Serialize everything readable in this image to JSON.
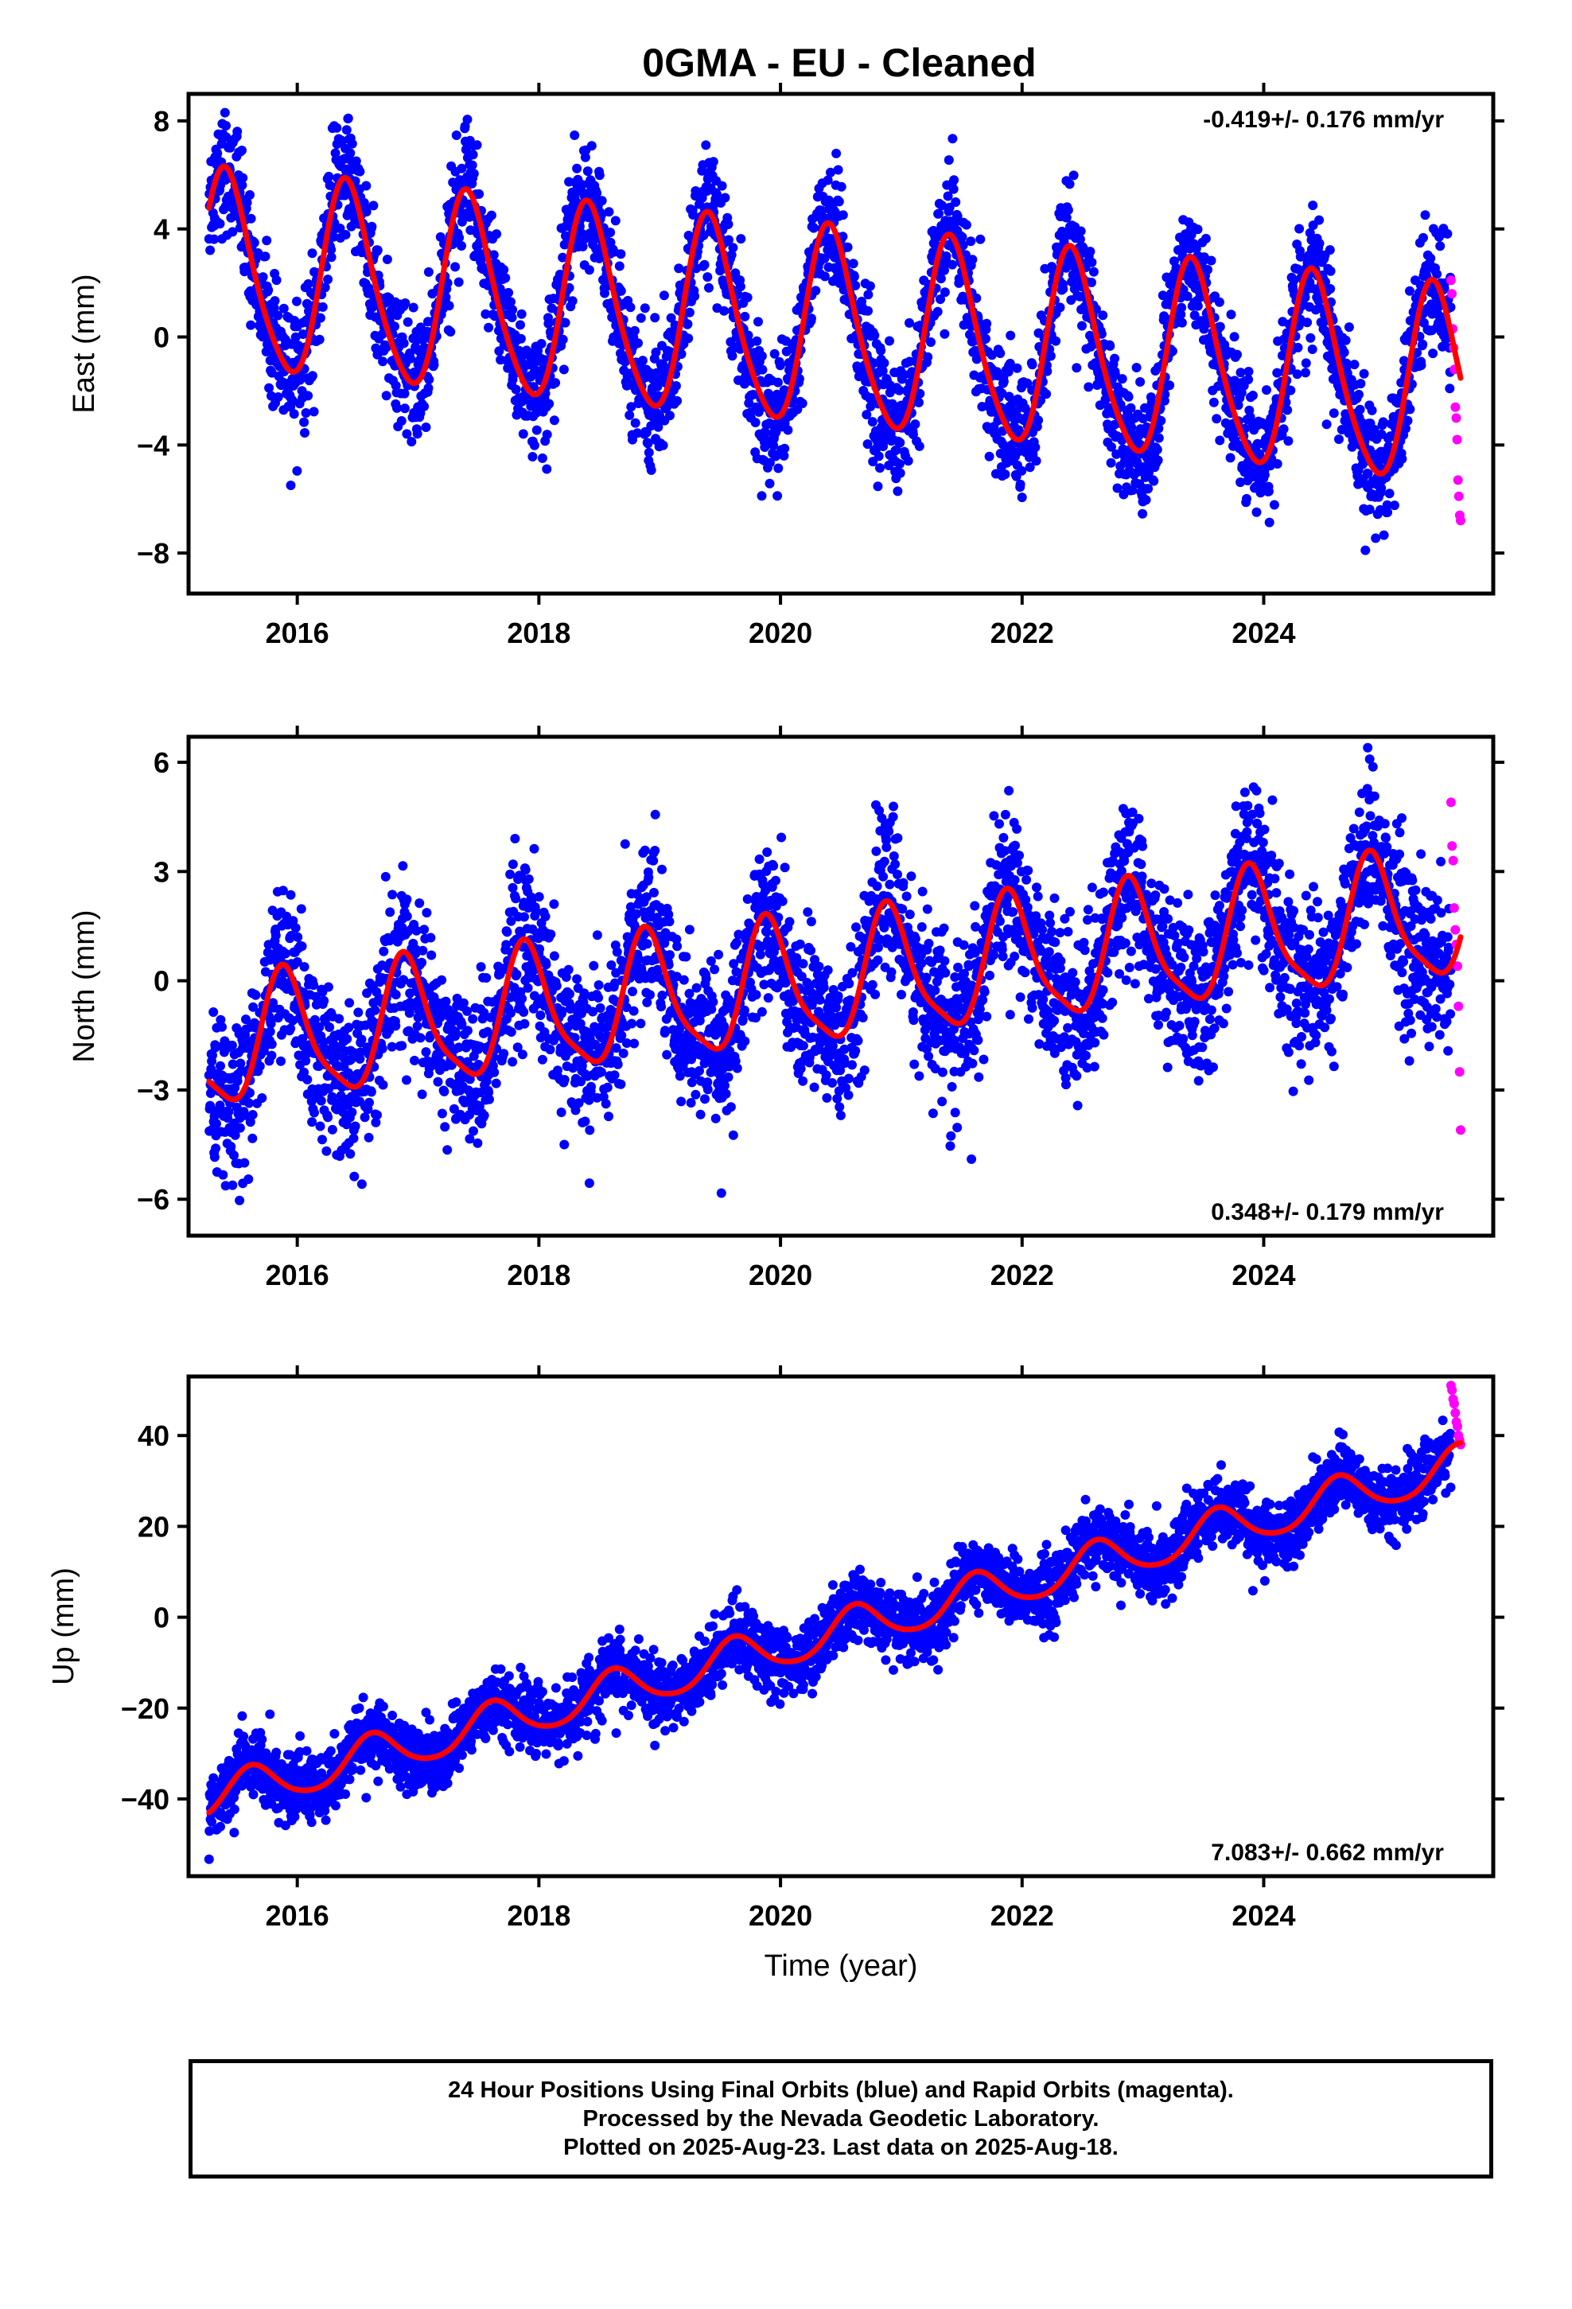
{
  "title": "0GMA  - EU - Cleaned",
  "colors": {
    "final_orbits": "#0000ff",
    "rapid_orbits": "#ff00ff",
    "model_fit": "#ff0000",
    "frame": "#000000"
  },
  "x_axis": {
    "label": "Time (year)",
    "range": [
      2015.1,
      2025.9
    ],
    "ticks": [
      2016,
      2018,
      2020,
      2022,
      2024
    ],
    "tick_labels": [
      "2016",
      "2018",
      "2020",
      "2022",
      "2024"
    ]
  },
  "panels": [
    {
      "id": "east",
      "ylabel": "East (mm)",
      "rate_text": "-0.419+/- 0.176 mm/yr",
      "rate_position": "top-right",
      "ylim": [
        -9.5,
        9.0
      ],
      "yticks": [
        -8,
        -4,
        0,
        4,
        8
      ],
      "ytick_labels": [
        "−8",
        "−4",
        "0",
        "4",
        "8"
      ]
    },
    {
      "id": "north",
      "ylabel": "North (mm)",
      "rate_text": "0.348+/- 0.179 mm/yr",
      "rate_position": "bottom-right",
      "ylim": [
        -7.0,
        6.7
      ],
      "yticks": [
        -6,
        -3,
        0,
        3,
        6
      ],
      "ytick_labels": [
        "−6",
        "−3",
        "0",
        "3",
        "6"
      ]
    },
    {
      "id": "up",
      "ylabel": "Up (mm)",
      "rate_text": "7.083+/- 0.662 mm/yr",
      "rate_position": "bottom-right",
      "ylim": [
        -57,
        53
      ],
      "yticks": [
        -40,
        -20,
        0,
        20,
        40
      ],
      "ytick_labels": [
        "−40",
        "−20",
        "0",
        "20",
        "40"
      ]
    }
  ],
  "chart_data": [
    {
      "type": "scatter",
      "panel": "east",
      "ylabel": "East (mm)",
      "xlim": [
        2015.1,
        2025.9
      ],
      "ylim": [
        -9.5,
        9.0
      ],
      "annotation": "-0.419+/- 0.176 mm/yr",
      "model": {
        "offset": 0.2,
        "rate": -0.419,
        "t0": 2020.5,
        "annual_amplitude": 3.6,
        "annual_peak": 0.42,
        "semiannual_amplitude": 0.5,
        "semiannual_peak": 0.35
      },
      "final_points": {
        "start": 2015.27,
        "end": 2025.55,
        "scatter_sd": 1.1
      },
      "rapid_points": {
        "start": 2025.55,
        "end": 2025.63,
        "values": [
          2.1,
          1.6,
          0.3,
          -0.4,
          -1.2,
          -2.6,
          -3.0,
          -3.8,
          -5.3,
          -5.9,
          -6.6,
          -6.8
        ]
      },
      "plotted_range": [
        -9,
        8.7
      ]
    },
    {
      "type": "scatter",
      "panel": "north",
      "ylabel": "North (mm)",
      "xlim": [
        2015.1,
        2025.9
      ],
      "ylim": [
        -7.0,
        6.7
      ],
      "annotation": "0.348+/- 0.179 mm/yr",
      "model": {
        "offset": 0.0,
        "rate": 0.348,
        "t0": 2020.5,
        "annual_amplitude": 1.7,
        "annual_peak": 0.9,
        "semiannual_amplitude": 0.4,
        "semiannual_peak": 0.85
      },
      "final_points": {
        "start": 2015.27,
        "end": 2025.55,
        "scatter_sd": 1.05
      },
      "rapid_points": {
        "start": 2025.55,
        "end": 2025.63,
        "values": [
          4.9,
          3.7,
          3.3,
          2.0,
          1.4,
          1.0,
          0.4,
          -0.7,
          -2.5,
          -4.1
        ]
      },
      "plotted_range": [
        -6.8,
        6.4
      ]
    },
    {
      "type": "scatter",
      "panel": "up",
      "ylabel": "Up (mm)",
      "xlim": [
        2015.1,
        2025.9
      ],
      "ylim": [
        -57,
        53
      ],
      "annotation": "7.083+/- 0.662 mm/yr",
      "model": {
        "offset": -3.0,
        "rate": 7.083,
        "t0": 2020.5,
        "annual_amplitude": 4.5,
        "annual_peak": 0.62,
        "semiannual_amplitude": 0.6,
        "semiannual_peak": 0.6
      },
      "final_points": {
        "start": 2015.27,
        "end": 2025.55,
        "scatter_sd": 3.6
      },
      "rapid_points": {
        "start": 2025.55,
        "end": 2025.63,
        "values": [
          51,
          50,
          48,
          47,
          45,
          43,
          42,
          40,
          39,
          38
        ]
      },
      "plotted_range": [
        -55,
        51
      ]
    }
  ],
  "footer": {
    "line1": "24 Hour Positions Using Final Orbits (blue) and Rapid Orbits (magenta).",
    "line2": "Processed by the Nevada Geodetic Laboratory.",
    "line3": "Plotted on 2025-Aug-23. Last data on 2025-Aug-18."
  }
}
